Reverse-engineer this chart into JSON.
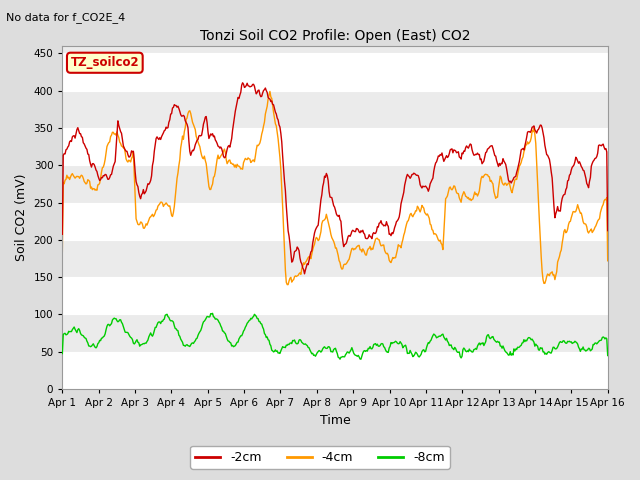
{
  "title": "Tonzi Soil CO2 Profile: Open (East) CO2",
  "suptitle": "No data for f_CO2E_4",
  "xlabel": "Time",
  "ylabel": "Soil CO2 (mV)",
  "ylim": [
    0,
    460
  ],
  "yticks": [
    0,
    50,
    100,
    150,
    200,
    250,
    300,
    350,
    400,
    450
  ],
  "x_labels": [
    "Apr 1",
    "Apr 2",
    "Apr 3",
    "Apr 4",
    "Apr 5",
    "Apr 6",
    "Apr 7",
    "Apr 8",
    "Apr 9",
    "Apr 10",
    "Apr 11",
    "Apr 12",
    "Apr 13",
    "Apr 14",
    "Apr 15",
    "Apr 16"
  ],
  "color_2cm": "#cc0000",
  "color_4cm": "#ff9900",
  "color_8cm": "#00cc00",
  "legend_label_2cm": "-2cm",
  "legend_label_4cm": "-4cm",
  "legend_label_8cm": "-8cm",
  "box_label": "TZ_soilco2",
  "box_facecolor": "#ffffcc",
  "box_edgecolor": "#cc0000",
  "background_color": "#dddddd",
  "plot_bg_color": "#ebebeb",
  "grid_color": "#ffffff",
  "n_points": 600
}
